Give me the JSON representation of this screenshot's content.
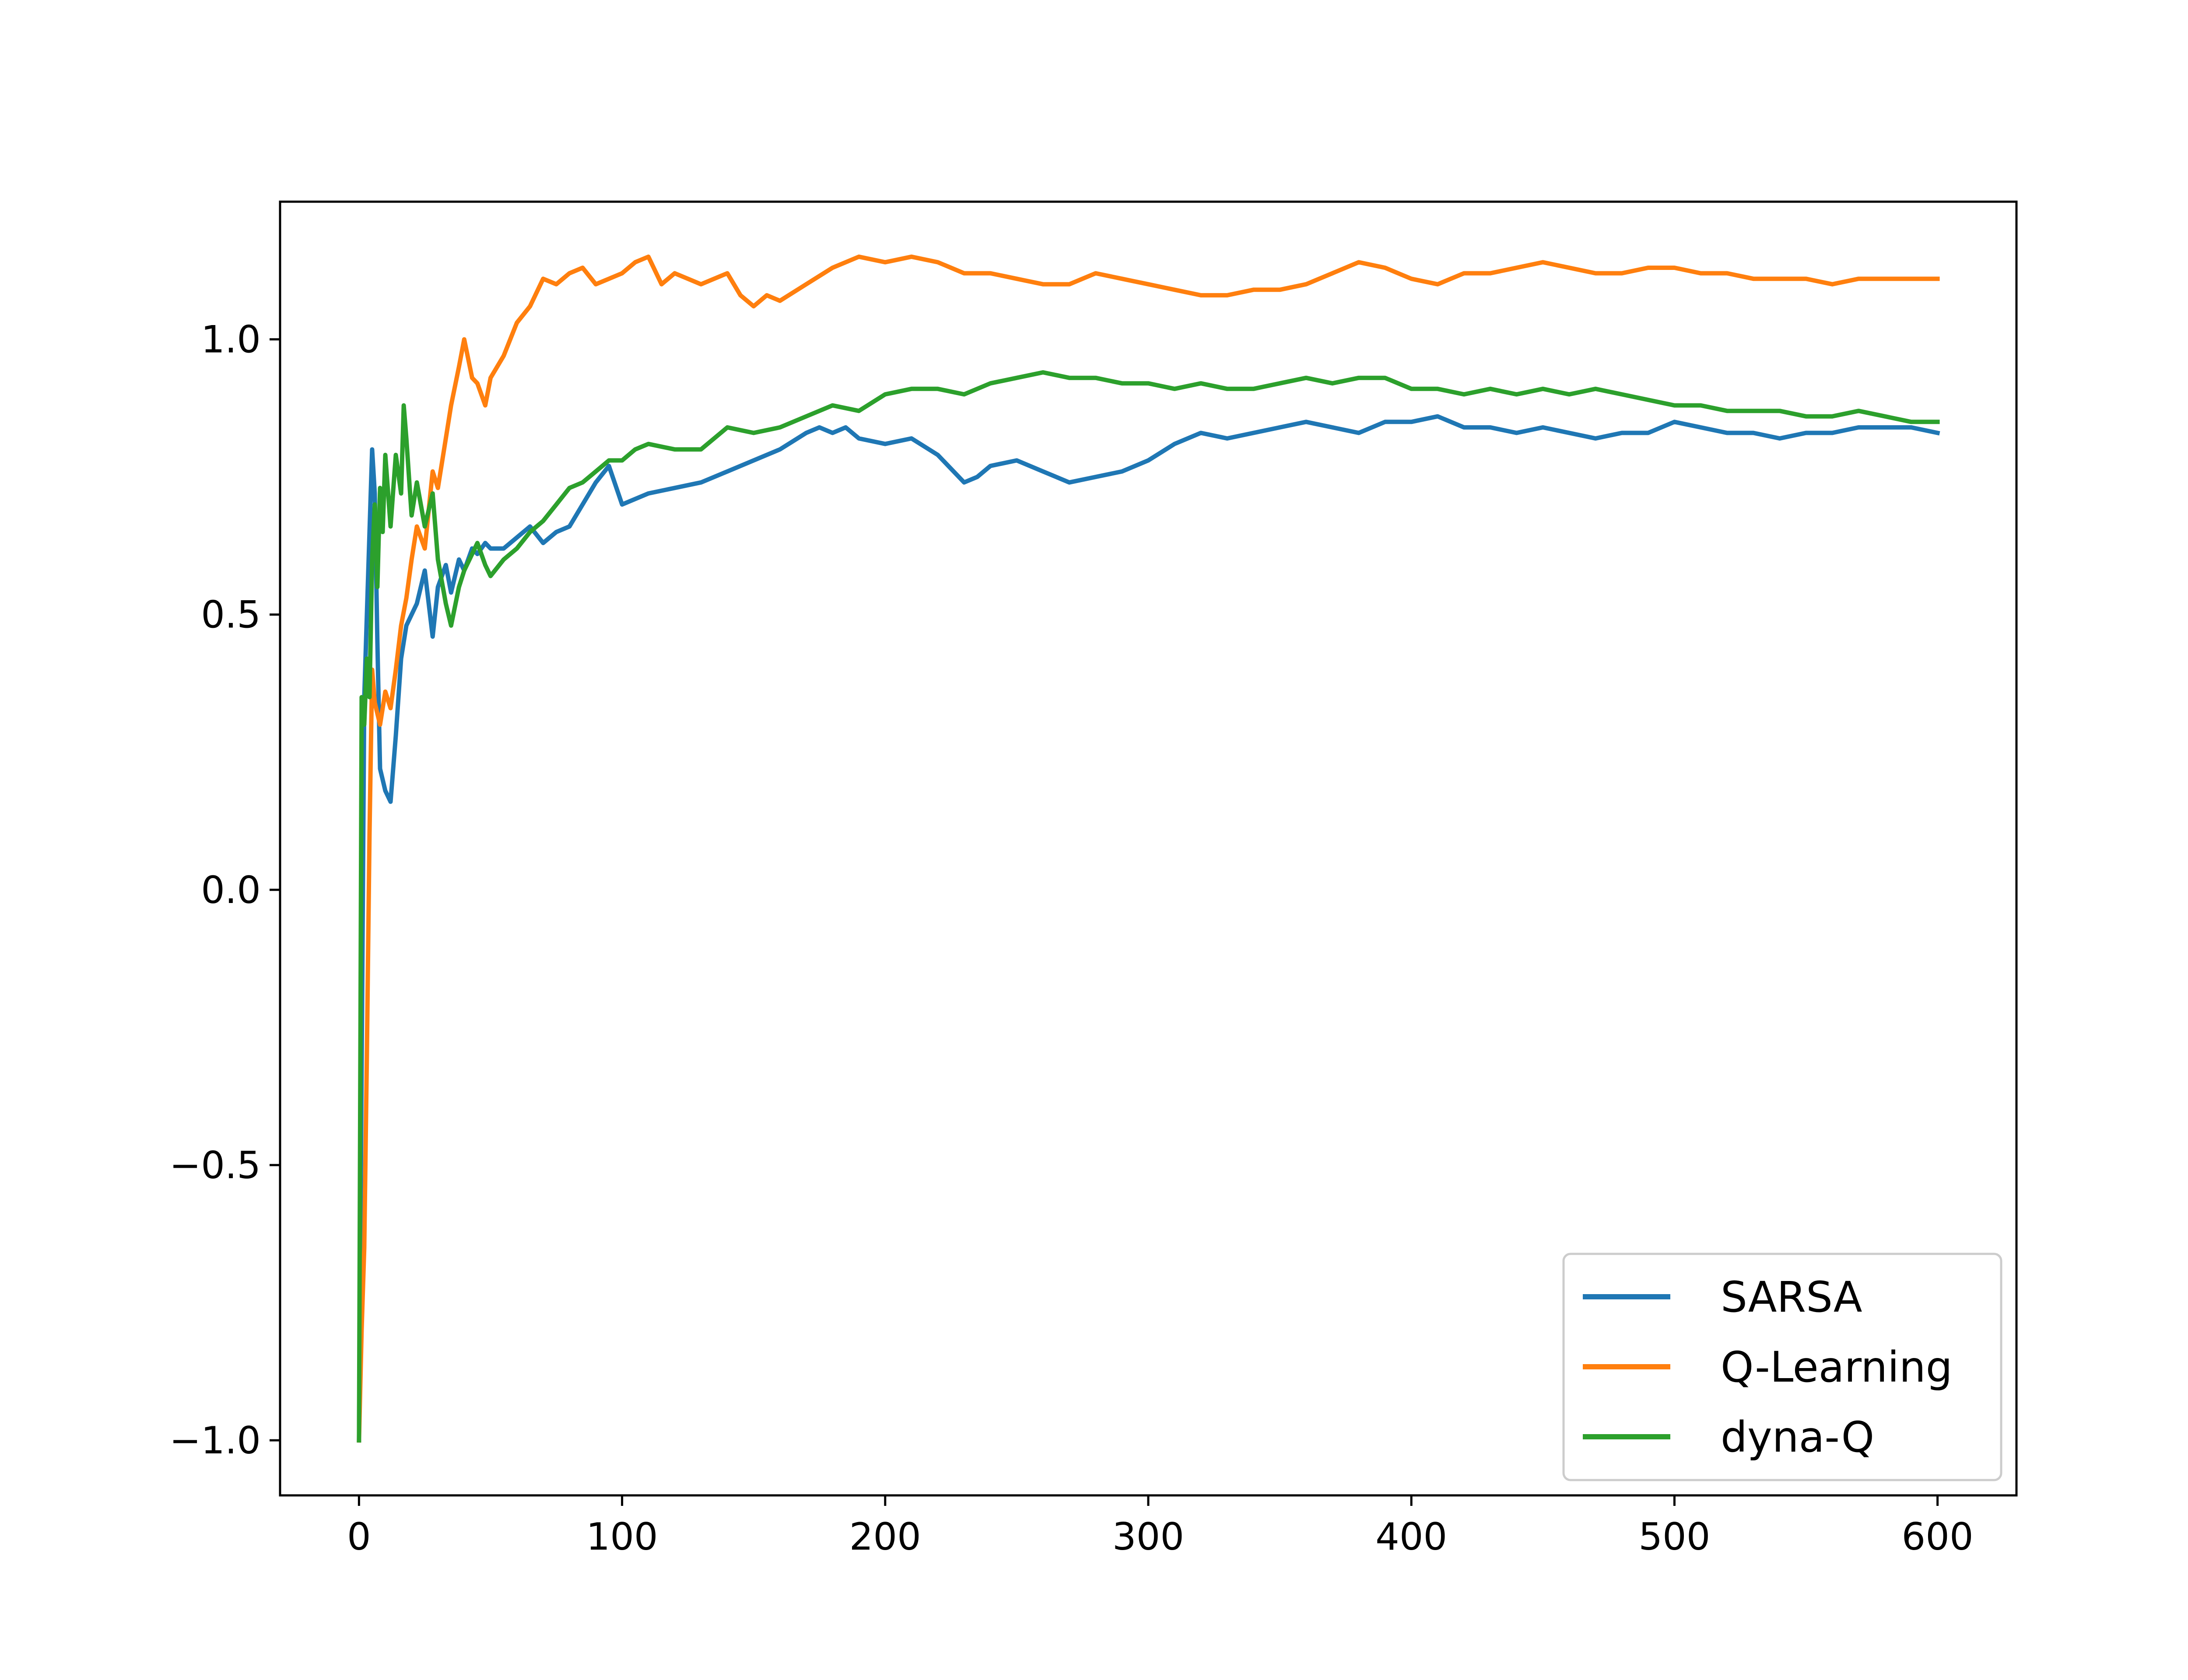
{
  "chart_data": {
    "type": "line",
    "title": "",
    "xlabel": "",
    "ylabel": "",
    "xlim": [
      -30,
      630
    ],
    "ylim": [
      -1.1,
      1.25
    ],
    "xticks": [
      0,
      100,
      200,
      300,
      400,
      500,
      600
    ],
    "yticks": [
      -1.0,
      -0.5,
      0.0,
      0.5,
      1.0
    ],
    "xtick_labels": [
      "0",
      "100",
      "200",
      "300",
      "400",
      "500",
      "600"
    ],
    "ytick_labels": [
      "−1.0",
      "−0.5",
      "0.0",
      "0.5",
      "1.0"
    ],
    "grid": false,
    "legend_position": "lower-right",
    "series": [
      {
        "name": "SARSA",
        "color": "#1f77b4",
        "x": [
          0,
          2,
          4,
          5,
          6,
          7,
          8,
          10,
          12,
          14,
          16,
          18,
          20,
          22,
          25,
          28,
          30,
          33,
          35,
          38,
          40,
          43,
          45,
          48,
          50,
          55,
          60,
          65,
          70,
          75,
          80,
          85,
          90,
          95,
          100,
          110,
          120,
          130,
          140,
          150,
          160,
          170,
          175,
          180,
          185,
          190,
          200,
          210,
          220,
          230,
          235,
          240,
          250,
          260,
          270,
          280,
          290,
          300,
          310,
          320,
          330,
          340,
          350,
          360,
          370,
          380,
          390,
          400,
          410,
          420,
          430,
          440,
          450,
          460,
          470,
          480,
          490,
          500,
          510,
          520,
          530,
          540,
          550,
          560,
          570,
          580,
          590,
          600
        ],
        "y": [
          -1.0,
          0.35,
          0.65,
          0.8,
          0.72,
          0.45,
          0.22,
          0.18,
          0.16,
          0.28,
          0.42,
          0.48,
          0.5,
          0.52,
          0.58,
          0.46,
          0.55,
          0.59,
          0.54,
          0.6,
          0.58,
          0.62,
          0.61,
          0.63,
          0.62,
          0.62,
          0.64,
          0.66,
          0.63,
          0.65,
          0.66,
          0.7,
          0.74,
          0.77,
          0.7,
          0.72,
          0.73,
          0.74,
          0.76,
          0.78,
          0.8,
          0.83,
          0.84,
          0.83,
          0.84,
          0.82,
          0.81,
          0.82,
          0.79,
          0.74,
          0.75,
          0.77,
          0.78,
          0.76,
          0.74,
          0.75,
          0.76,
          0.78,
          0.81,
          0.83,
          0.82,
          0.83,
          0.84,
          0.85,
          0.84,
          0.83,
          0.85,
          0.85,
          0.86,
          0.84,
          0.84,
          0.83,
          0.84,
          0.83,
          0.82,
          0.83,
          0.83,
          0.85,
          0.84,
          0.83,
          0.83,
          0.82,
          0.83,
          0.83,
          0.84,
          0.84,
          0.84,
          0.83
        ]
      },
      {
        "name": "Q-Learning",
        "color": "#ff7f0e",
        "x": [
          0,
          1,
          2,
          3,
          4,
          5,
          6,
          8,
          10,
          12,
          14,
          16,
          18,
          20,
          22,
          25,
          28,
          30,
          33,
          35,
          38,
          40,
          43,
          45,
          48,
          50,
          55,
          60,
          65,
          70,
          75,
          80,
          85,
          90,
          95,
          100,
          105,
          110,
          115,
          120,
          130,
          140,
          145,
          150,
          155,
          160,
          170,
          180,
          190,
          200,
          210,
          220,
          230,
          240,
          250,
          260,
          270,
          280,
          290,
          300,
          310,
          320,
          330,
          340,
          350,
          360,
          370,
          380,
          390,
          400,
          410,
          420,
          430,
          440,
          450,
          460,
          470,
          480,
          490,
          500,
          510,
          520,
          530,
          540,
          550,
          560,
          570,
          580,
          590,
          600
        ],
        "y": [
          -1.0,
          -0.8,
          -0.65,
          -0.3,
          0.1,
          0.4,
          0.34,
          0.3,
          0.36,
          0.33,
          0.4,
          0.48,
          0.53,
          0.6,
          0.66,
          0.62,
          0.76,
          0.73,
          0.82,
          0.88,
          0.95,
          1.0,
          0.93,
          0.92,
          0.88,
          0.93,
          0.97,
          1.03,
          1.06,
          1.11,
          1.1,
          1.12,
          1.13,
          1.1,
          1.11,
          1.12,
          1.14,
          1.15,
          1.1,
          1.12,
          1.1,
          1.12,
          1.08,
          1.06,
          1.08,
          1.07,
          1.1,
          1.13,
          1.15,
          1.14,
          1.15,
          1.14,
          1.12,
          1.12,
          1.11,
          1.1,
          1.1,
          1.12,
          1.11,
          1.1,
          1.09,
          1.08,
          1.08,
          1.09,
          1.09,
          1.1,
          1.12,
          1.14,
          1.13,
          1.11,
          1.1,
          1.12,
          1.12,
          1.13,
          1.14,
          1.13,
          1.12,
          1.12,
          1.13,
          1.13,
          1.12,
          1.12,
          1.11,
          1.11,
          1.11,
          1.1,
          1.11,
          1.11,
          1.11,
          1.11
        ]
      },
      {
        "name": "dyna-Q",
        "color": "#2ca02c",
        "x": [
          0,
          1,
          2,
          3,
          4,
          5,
          6,
          7,
          8,
          9,
          10,
          12,
          14,
          16,
          17,
          18,
          20,
          22,
          25,
          28,
          30,
          33,
          35,
          38,
          40,
          43,
          45,
          48,
          50,
          55,
          60,
          65,
          70,
          75,
          80,
          85,
          90,
          95,
          100,
          105,
          110,
          120,
          130,
          140,
          150,
          160,
          170,
          180,
          190,
          200,
          210,
          220,
          230,
          240,
          250,
          260,
          270,
          280,
          290,
          300,
          310,
          320,
          330,
          340,
          350,
          360,
          370,
          380,
          390,
          400,
          410,
          420,
          430,
          440,
          450,
          460,
          470,
          480,
          490,
          500,
          510,
          520,
          530,
          540,
          550,
          560,
          570,
          580,
          590,
          600
        ],
        "y": [
          -1.0,
          0.35,
          0.3,
          0.42,
          0.35,
          0.6,
          0.7,
          0.55,
          0.73,
          0.65,
          0.79,
          0.66,
          0.79,
          0.72,
          0.88,
          0.82,
          0.68,
          0.74,
          0.66,
          0.72,
          0.6,
          0.52,
          0.48,
          0.55,
          0.58,
          0.61,
          0.63,
          0.59,
          0.57,
          0.6,
          0.62,
          0.65,
          0.67,
          0.7,
          0.73,
          0.74,
          0.76,
          0.78,
          0.78,
          0.8,
          0.81,
          0.8,
          0.8,
          0.84,
          0.83,
          0.84,
          0.86,
          0.88,
          0.87,
          0.9,
          0.91,
          0.91,
          0.9,
          0.92,
          0.93,
          0.94,
          0.93,
          0.93,
          0.92,
          0.92,
          0.91,
          0.92,
          0.91,
          0.91,
          0.92,
          0.93,
          0.92,
          0.93,
          0.93,
          0.91,
          0.91,
          0.9,
          0.91,
          0.9,
          0.91,
          0.9,
          0.91,
          0.9,
          0.89,
          0.88,
          0.88,
          0.87,
          0.87,
          0.87,
          0.86,
          0.86,
          0.87,
          0.86,
          0.85,
          0.85
        ]
      }
    ]
  }
}
